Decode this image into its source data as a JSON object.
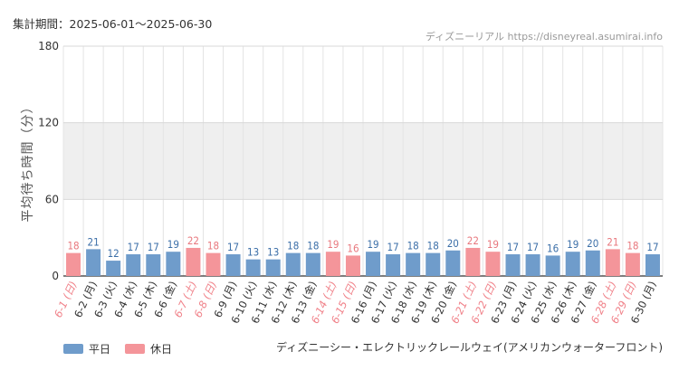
{
  "header": {
    "period": "集計期間：2025-06-01～2025-06-30",
    "site": "ディズニーリアル https://disneyreal.asumirai.info"
  },
  "legend": {
    "weekday": "平日",
    "holiday": "休日"
  },
  "attraction": "ディズニーシー・エレクトリックレールウェイ(アメリカンウォーターフロント)",
  "colors": {
    "weekday": "#6f9ccb",
    "holiday": "#f4959a",
    "weekday_text": "#3c6fa8",
    "holiday_text": "#e8787e",
    "band": "#efefef"
  },
  "chart_data": {
    "type": "bar",
    "title": "",
    "xlabel": "",
    "ylabel": "平均待ち時間（分）",
    "ylim": [
      0,
      180
    ],
    "yticks": [
      0,
      60,
      120,
      180
    ],
    "categories": [
      "6-1 (日)",
      "6-2 (月)",
      "6-3 (火)",
      "6-4 (水)",
      "6-5 (木)",
      "6-6 (金)",
      "6-7 (土)",
      "6-8 (日)",
      "6-9 (月)",
      "6-10 (火)",
      "6-11 (水)",
      "6-12 (木)",
      "6-13 (金)",
      "6-14 (土)",
      "6-15 (日)",
      "6-16 (月)",
      "6-17 (火)",
      "6-18 (水)",
      "6-19 (木)",
      "6-20 (金)",
      "6-21 (土)",
      "6-22 (日)",
      "6-23 (月)",
      "6-24 (火)",
      "6-25 (水)",
      "6-26 (木)",
      "6-27 (金)",
      "6-28 (土)",
      "6-29 (日)",
      "6-30 (月)"
    ],
    "values": [
      18,
      21,
      12,
      17,
      17,
      19,
      22,
      18,
      17,
      13,
      13,
      18,
      18,
      19,
      16,
      19,
      17,
      18,
      18,
      20,
      22,
      19,
      17,
      17,
      16,
      19,
      20,
      21,
      18,
      17
    ],
    "day_type": [
      "holiday",
      "weekday",
      "weekday",
      "weekday",
      "weekday",
      "weekday",
      "holiday",
      "holiday",
      "weekday",
      "weekday",
      "weekday",
      "weekday",
      "weekday",
      "holiday",
      "holiday",
      "weekday",
      "weekday",
      "weekday",
      "weekday",
      "weekday",
      "holiday",
      "holiday",
      "weekday",
      "weekday",
      "weekday",
      "weekday",
      "weekday",
      "holiday",
      "holiday",
      "weekday"
    ],
    "series": [
      {
        "name": "平均待ち時間",
        "values": [
          18,
          21,
          12,
          17,
          17,
          19,
          22,
          18,
          17,
          13,
          13,
          18,
          18,
          19,
          16,
          19,
          17,
          18,
          18,
          20,
          22,
          19,
          17,
          17,
          16,
          19,
          20,
          21,
          18,
          17
        ]
      }
    ]
  }
}
